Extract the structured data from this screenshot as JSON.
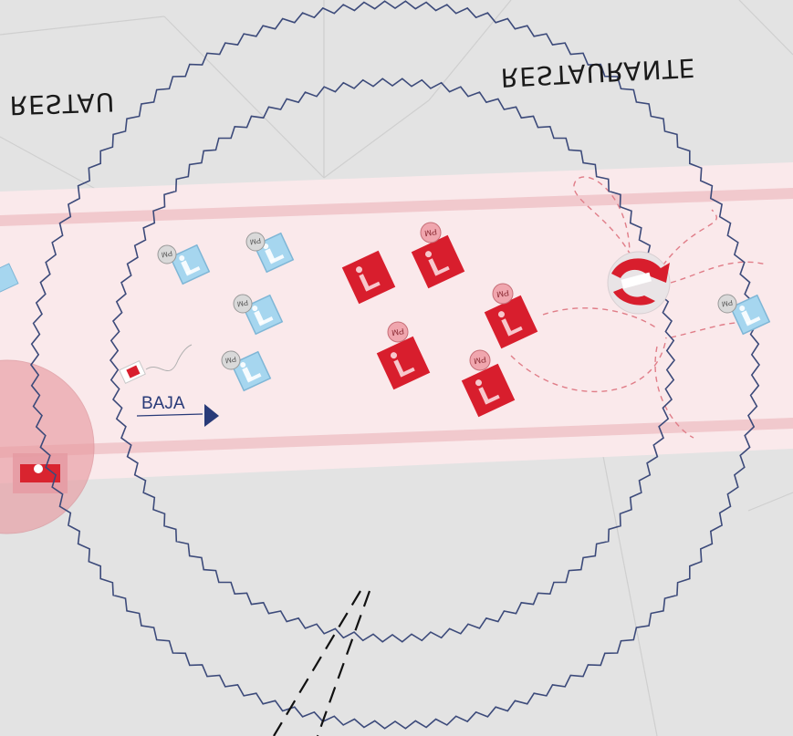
{
  "map": {
    "labels": {
      "restaurante_right": "RESTAURANTE",
      "restaurante_left": "RESTAU",
      "direction": "BAJA"
    },
    "badge_text": "PM",
    "unit_icons": {
      "blue": [
        {
          "id": "blue-1"
        },
        {
          "id": "blue-2"
        },
        {
          "id": "blue-3"
        },
        {
          "id": "blue-4"
        },
        {
          "id": "blue-edge-right"
        }
      ],
      "red": [
        {
          "id": "red-1"
        },
        {
          "id": "red-2"
        },
        {
          "id": "red-3"
        },
        {
          "id": "red-4"
        },
        {
          "id": "red-5"
        }
      ]
    },
    "colors": {
      "background": "#e3e3e3",
      "road_fill": "#fbe8ea",
      "road_stripe": "#f0c8cc",
      "perimeter": "#3c4a7a",
      "red_unit": "#d91f2e",
      "blue_unit": "#a8d8f0",
      "badge": "#f2a3ac",
      "direction_text": "#283a78"
    }
  }
}
